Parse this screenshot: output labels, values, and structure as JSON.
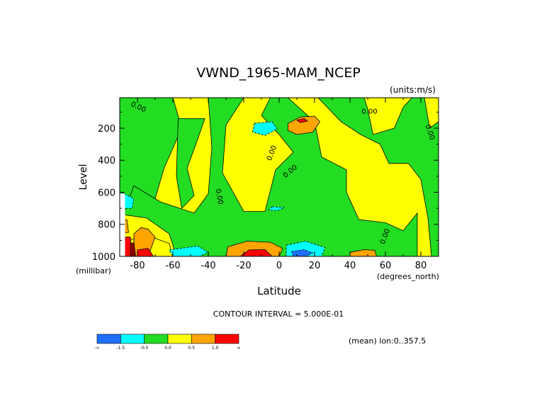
{
  "chart_data": {
    "type": "heatmap",
    "title": "VWND_1965-MAM_NCEP",
    "units_label": "(units:m/s)",
    "xlabel": "Latitude",
    "ylabel": "Level",
    "x_unit_label": "(degrees_north)",
    "y_unit_label": "(millibar)",
    "x_ticks": [
      -80,
      -60,
      -40,
      -20,
      0,
      20,
      40,
      60,
      80
    ],
    "x_tick_labels": [
      "-80",
      "-60",
      "-40",
      "-20",
      "0",
      "20",
      "40",
      "60",
      "80"
    ],
    "y_ticks": [
      200,
      400,
      600,
      800,
      1000
    ],
    "y_tick_labels": [
      "200",
      "400",
      "600",
      "800",
      "1000"
    ],
    "xlim": [
      -90,
      90
    ],
    "ylim": [
      1000,
      10
    ],
    "contour_interval_text": "CONTOUR INTERVAL = 5.000E-01",
    "mean_text": "(mean) lon:0..357.5",
    "zero_contour_label": "0.00",
    "colorbar": {
      "colors": [
        "#1e6eff",
        "#00ffff",
        "#22dd22",
        "#ffff00",
        "#ffa500",
        "#ff0000"
      ],
      "boundary_labels": [
        "-∞",
        "-1.5",
        "-0.5",
        "0.0",
        "0.5",
        "1.0",
        "∞"
      ]
    },
    "regions": [
      {
        "level": "green",
        "poly": [
          [
            -90,
            10
          ],
          [
            -60,
            10
          ],
          [
            -55,
            200
          ],
          [
            -65,
            450
          ],
          [
            -70,
            640
          ],
          [
            -78,
            720
          ],
          [
            -90,
            700
          ]
        ]
      },
      {
        "level": "green",
        "poly": [
          [
            -57,
            140
          ],
          [
            -42,
            140
          ],
          [
            -46,
            270
          ],
          [
            -52,
            450
          ],
          [
            -48,
            620
          ],
          [
            -55,
            700
          ],
          [
            -58,
            500
          ]
        ]
      },
      {
        "level": "green",
        "poly": [
          [
            -40,
            10
          ],
          [
            -20,
            10
          ],
          [
            -30,
            180
          ],
          [
            -32,
            480
          ],
          [
            -20,
            720
          ],
          [
            -8,
            720
          ],
          [
            -2,
            460
          ],
          [
            8,
            350
          ],
          [
            0,
            240
          ],
          [
            -10,
            120
          ],
          [
            -5,
            10
          ],
          [
            5,
            10
          ],
          [
            20,
            160
          ],
          [
            24,
            380
          ],
          [
            38,
            460
          ],
          [
            38,
            600
          ],
          [
            45,
            770
          ],
          [
            60,
            790
          ],
          [
            70,
            840
          ],
          [
            78,
            730
          ],
          [
            78,
            1000
          ],
          [
            -58,
            1000
          ],
          [
            -62,
            860
          ],
          [
            -75,
            760
          ],
          [
            -88,
            740
          ],
          [
            -82,
            560
          ],
          [
            -67,
            660
          ],
          [
            -48,
            730
          ],
          [
            -40,
            610
          ],
          [
            -38,
            320
          ]
        ]
      },
      {
        "level": "green",
        "poly": [
          [
            22,
            10
          ],
          [
            48,
            10
          ],
          [
            50,
            80
          ],
          [
            53,
            240
          ],
          [
            65,
            200
          ],
          [
            70,
            70
          ],
          [
            75,
            10
          ],
          [
            82,
            10
          ],
          [
            85,
            200
          ],
          [
            90,
            160
          ],
          [
            90,
            1000
          ],
          [
            86,
            1000
          ],
          [
            84,
            760
          ],
          [
            80,
            520
          ],
          [
            73,
            420
          ],
          [
            62,
            420
          ],
          [
            57,
            300
          ],
          [
            46,
            240
          ],
          [
            35,
            160
          ]
        ]
      },
      {
        "level": "yellow",
        "poly": [
          [
            -88,
            900
          ],
          [
            -72,
            880
          ],
          [
            -62,
            920
          ],
          [
            -60,
            1000
          ],
          [
            -88,
            1000
          ]
        ]
      },
      {
        "level": "cyan",
        "poly": [
          [
            -14,
            170
          ],
          [
            -4,
            160
          ],
          [
            -1,
            205
          ],
          [
            -8,
            245
          ],
          [
            -15,
            225
          ]
        ]
      },
      {
        "level": "cyan",
        "poly": [
          [
            -62,
            960
          ],
          [
            -46,
            935
          ],
          [
            -40,
            975
          ],
          [
            -45,
            1000
          ],
          [
            -60,
            1000
          ]
        ]
      },
      {
        "level": "cyan",
        "poly": [
          [
            4,
            930
          ],
          [
            15,
            905
          ],
          [
            26,
            945
          ],
          [
            24,
            1000
          ],
          [
            4,
            1000
          ]
        ]
      },
      {
        "level": "cyan",
        "poly": [
          [
            -89,
            600
          ],
          [
            -82,
            640
          ],
          [
            -83,
            700
          ],
          [
            -89,
            700
          ]
        ]
      },
      {
        "level": "cyan",
        "poly": [
          [
            -4,
            690
          ],
          [
            3,
            695
          ],
          [
            -1,
            715
          ],
          [
            -6,
            710
          ]
        ]
      },
      {
        "level": "blue",
        "poly": [
          [
            7,
            970
          ],
          [
            14,
            958
          ],
          [
            19,
            978
          ],
          [
            15,
            1000
          ],
          [
            8,
            1000
          ]
        ]
      },
      {
        "level": "orange",
        "poly": [
          [
            5,
            170
          ],
          [
            12,
            130
          ],
          [
            20,
            125
          ],
          [
            23,
            160
          ],
          [
            19,
            225
          ],
          [
            10,
            240
          ],
          [
            5,
            215
          ]
        ]
      },
      {
        "level": "orange",
        "poly": [
          [
            -29,
            940
          ],
          [
            -18,
            905
          ],
          [
            -5,
            912
          ],
          [
            2,
            950
          ],
          [
            0,
            1000
          ],
          [
            -30,
            1000
          ]
        ]
      },
      {
        "level": "orange",
        "poly": [
          [
            -82,
            860
          ],
          [
            -78,
            820
          ],
          [
            -74,
            830
          ],
          [
            -70,
            880
          ],
          [
            -74,
            1000
          ],
          [
            -82,
            1000
          ]
        ]
      },
      {
        "level": "orange",
        "poly": [
          [
            -89,
            780
          ],
          [
            -86,
            770
          ],
          [
            -85,
            850
          ],
          [
            -89,
            860
          ]
        ]
      },
      {
        "level": "orange",
        "poly": [
          [
            40,
            975
          ],
          [
            48,
            958
          ],
          [
            54,
            962
          ],
          [
            55,
            1000
          ],
          [
            40,
            1000
          ]
        ]
      },
      {
        "level": "red",
        "poly": [
          [
            -17,
            960
          ],
          [
            -8,
            958
          ],
          [
            -4,
            1000
          ],
          [
            -22,
            1000
          ]
        ]
      },
      {
        "level": "red",
        "poly": [
          [
            -80,
            960
          ],
          [
            -74,
            950
          ],
          [
            -71,
            1000
          ],
          [
            -80,
            1000
          ]
        ]
      },
      {
        "level": "red",
        "poly": [
          [
            -89,
            880
          ],
          [
            -84,
            880
          ],
          [
            -83,
            1000
          ],
          [
            -89,
            1000
          ]
        ]
      },
      {
        "level": "red",
        "poly": [
          [
            10,
            150
          ],
          [
            14,
            140
          ],
          [
            16,
            155
          ],
          [
            12,
            165
          ]
        ]
      },
      {
        "level": "darkred",
        "poly": [
          [
            -84,
            920
          ],
          [
            -82,
            915
          ],
          [
            -81,
            1000
          ],
          [
            -84,
            1000
          ]
        ]
      },
      {
        "level": "white",
        "poly": [
          [
            -90,
            610
          ],
          [
            -87,
            610
          ],
          [
            -87,
            1000
          ],
          [
            -90,
            1000
          ]
        ]
      }
    ],
    "zero_labels": [
      {
        "x": -80,
        "y": 80,
        "rot": 25
      },
      {
        "x": 51,
        "y": 110,
        "rot": 0
      },
      {
        "x": 84,
        "y": 230,
        "rot": 70
      },
      {
        "x": -3,
        "y": 360,
        "rot": -70
      },
      {
        "x": 7,
        "y": 480,
        "rot": -40
      },
      {
        "x": -35,
        "y": 630,
        "rot": 80
      },
      {
        "x": 61,
        "y": 880,
        "rot": -70
      }
    ]
  }
}
